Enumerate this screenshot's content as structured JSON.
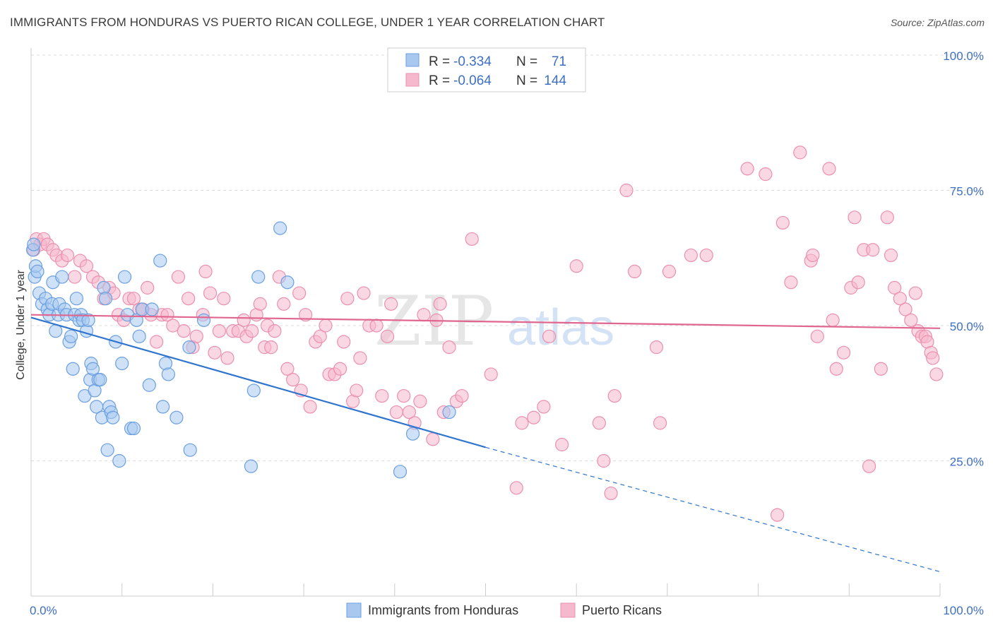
{
  "title": "IMMIGRANTS FROM HONDURAS VS PUERTO RICAN COLLEGE, UNDER 1 YEAR CORRELATION CHART",
  "source": "Source: ZipAtlas.com",
  "watermark": {
    "zip": "ZIP",
    "atlas": "atlas"
  },
  "colors": {
    "blue_fill": "#a8c8f0",
    "blue_stroke": "#6a9fe0",
    "blue_line": "#2f75d0",
    "pink_fill": "#f6b8cc",
    "pink_stroke": "#ec8fae",
    "pink_line": "#e0668f",
    "grid": "#dddddd",
    "axis_label": "#3d6fc4"
  },
  "legend": {
    "rows": [
      {
        "r_label": "R =",
        "r_value": "-0.334",
        "n_label": "N =",
        "n_value": "71"
      },
      {
        "r_label": "R =",
        "r_value": "-0.064",
        "n_label": "N =",
        "n_value": "144"
      }
    ]
  },
  "bottom_legend": [
    "Immigrants from Honduras",
    "Puerto Ricans"
  ],
  "chart_data": {
    "type": "scatter",
    "title": "IMMIGRANTS FROM HONDURAS VS PUERTO RICAN COLLEGE, UNDER 1 YEAR CORRELATION CHART",
    "xlabel": "",
    "ylabel": "College, Under 1 year",
    "xlim": [
      0,
      100
    ],
    "ylim": [
      0,
      100
    ],
    "x_tick_labels": [
      "0.0%",
      "100.0%"
    ],
    "y_tick_values": [
      25,
      50,
      75,
      100
    ],
    "y_tick_labels": [
      "25.0%",
      "50.0%",
      "75.0%",
      "100.0%"
    ],
    "grid": true,
    "legend_position": "top-center",
    "series": [
      {
        "name": "Immigrants from Honduras",
        "r": -0.334,
        "n": 71,
        "trend": {
          "x0": 0,
          "y0": 51.5,
          "x1": 50,
          "y1": 27.5,
          "dashed_to_x": 100,
          "dashed_to_y": 4.5
        },
        "points": [
          [
            0.2,
            64
          ],
          [
            0.3,
            65
          ],
          [
            0.4,
            59
          ],
          [
            0.5,
            61
          ],
          [
            0.7,
            60
          ],
          [
            0.9,
            56
          ],
          [
            1.2,
            54
          ],
          [
            1.6,
            55
          ],
          [
            1.8,
            53
          ],
          [
            2.0,
            52
          ],
          [
            2.3,
            54
          ],
          [
            2.4,
            58
          ],
          [
            2.7,
            49
          ],
          [
            3.0,
            52
          ],
          [
            3.1,
            54
          ],
          [
            3.4,
            59
          ],
          [
            3.7,
            53
          ],
          [
            3.9,
            52
          ],
          [
            4.2,
            47
          ],
          [
            4.4,
            48
          ],
          [
            4.6,
            42
          ],
          [
            4.8,
            52
          ],
          [
            5.0,
            55
          ],
          [
            5.3,
            51
          ],
          [
            5.5,
            52
          ],
          [
            5.7,
            51
          ],
          [
            5.9,
            37
          ],
          [
            6.1,
            49
          ],
          [
            6.3,
            51
          ],
          [
            6.5,
            40
          ],
          [
            6.6,
            43
          ],
          [
            6.8,
            42
          ],
          [
            7.0,
            38
          ],
          [
            7.2,
            35
          ],
          [
            7.4,
            40
          ],
          [
            7.6,
            40
          ],
          [
            7.8,
            33
          ],
          [
            8.0,
            57
          ],
          [
            8.2,
            55
          ],
          [
            8.4,
            27
          ],
          [
            8.6,
            35
          ],
          [
            8.8,
            34
          ],
          [
            9.0,
            33
          ],
          [
            9.3,
            47
          ],
          [
            9.7,
            25
          ],
          [
            10.0,
            43
          ],
          [
            10.3,
            59
          ],
          [
            10.6,
            52
          ],
          [
            11.0,
            31
          ],
          [
            11.3,
            31
          ],
          [
            11.6,
            51
          ],
          [
            11.9,
            48
          ],
          [
            12.2,
            53
          ],
          [
            13.0,
            39
          ],
          [
            13.3,
            53
          ],
          [
            14.2,
            62
          ],
          [
            14.5,
            35
          ],
          [
            14.8,
            43
          ],
          [
            15.1,
            41
          ],
          [
            16.0,
            33
          ],
          [
            17.4,
            46
          ],
          [
            17.5,
            27
          ],
          [
            19.0,
            51
          ],
          [
            24.2,
            24
          ],
          [
            24.5,
            38
          ],
          [
            25.0,
            59
          ],
          [
            27.4,
            68
          ],
          [
            28.2,
            58
          ],
          [
            40.6,
            23
          ],
          [
            42.0,
            30
          ],
          [
            46.0,
            34
          ]
        ]
      },
      {
        "name": "Puerto Ricans",
        "r": -0.064,
        "n": 144,
        "trend": {
          "x0": 0,
          "y0": 52,
          "x1": 100,
          "y1": 49.5
        },
        "points": [
          [
            0.3,
            64
          ],
          [
            0.6,
            66
          ],
          [
            1.0,
            65
          ],
          [
            1.4,
            66
          ],
          [
            1.8,
            65
          ],
          [
            2.4,
            64
          ],
          [
            2.8,
            63
          ],
          [
            3.4,
            62
          ],
          [
            4.0,
            63
          ],
          [
            4.8,
            59
          ],
          [
            5.4,
            62
          ],
          [
            6.1,
            61
          ],
          [
            6.8,
            59
          ],
          [
            7.4,
            58
          ],
          [
            8.0,
            55
          ],
          [
            8.6,
            57
          ],
          [
            9.1,
            56
          ],
          [
            9.6,
            52
          ],
          [
            10.2,
            51
          ],
          [
            10.8,
            55
          ],
          [
            11.3,
            55
          ],
          [
            11.9,
            53
          ],
          [
            12.3,
            53
          ],
          [
            12.8,
            57
          ],
          [
            13.2,
            52
          ],
          [
            13.8,
            47
          ],
          [
            14.4,
            52
          ],
          [
            15.0,
            52
          ],
          [
            15.6,
            50
          ],
          [
            16.2,
            59
          ],
          [
            16.8,
            49
          ],
          [
            17.3,
            55
          ],
          [
            17.8,
            46
          ],
          [
            18.2,
            48
          ],
          [
            18.9,
            52
          ],
          [
            19.2,
            60
          ],
          [
            19.7,
            56
          ],
          [
            20.2,
            45
          ],
          [
            20.7,
            49
          ],
          [
            21.2,
            55
          ],
          [
            21.6,
            44
          ],
          [
            22.2,
            49
          ],
          [
            22.8,
            49
          ],
          [
            23.4,
            51
          ],
          [
            23.7,
            48
          ],
          [
            24.3,
            49
          ],
          [
            24.8,
            52
          ],
          [
            25.2,
            54
          ],
          [
            25.7,
            46
          ],
          [
            26.0,
            50
          ],
          [
            26.4,
            46
          ],
          [
            26.8,
            49
          ],
          [
            27.3,
            59
          ],
          [
            27.8,
            54
          ],
          [
            28.2,
            42
          ],
          [
            28.8,
            40
          ],
          [
            29.5,
            56
          ],
          [
            29.7,
            38
          ],
          [
            30.2,
            52
          ],
          [
            30.7,
            35
          ],
          [
            31.3,
            47
          ],
          [
            31.8,
            48
          ],
          [
            32.4,
            50
          ],
          [
            32.8,
            41
          ],
          [
            33.4,
            41
          ],
          [
            34.0,
            42
          ],
          [
            34.4,
            47
          ],
          [
            34.8,
            55
          ],
          [
            35.4,
            36
          ],
          [
            35.8,
            38
          ],
          [
            36.2,
            44
          ],
          [
            36.6,
            56
          ],
          [
            37.2,
            50
          ],
          [
            38.0,
            50
          ],
          [
            38.6,
            37
          ],
          [
            39.2,
            48
          ],
          [
            39.6,
            54
          ],
          [
            40.2,
            34
          ],
          [
            41.0,
            37
          ],
          [
            41.6,
            34
          ],
          [
            42.2,
            32
          ],
          [
            42.8,
            36
          ],
          [
            43.2,
            52
          ],
          [
            44.2,
            29
          ],
          [
            44.6,
            51
          ],
          [
            45.0,
            54
          ],
          [
            45.4,
            34
          ],
          [
            46.0,
            46
          ],
          [
            46.8,
            36
          ],
          [
            47.4,
            37
          ],
          [
            48.5,
            66
          ],
          [
            50.6,
            41
          ],
          [
            53.4,
            20
          ],
          [
            54.0,
            32
          ],
          [
            55.3,
            33
          ],
          [
            56.4,
            35
          ],
          [
            57.0,
            48
          ],
          [
            58.4,
            28
          ],
          [
            60.0,
            61
          ],
          [
            62.5,
            32
          ],
          [
            63.0,
            25
          ],
          [
            63.8,
            19
          ],
          [
            64.2,
            37
          ],
          [
            65.5,
            75
          ],
          [
            66.4,
            60
          ],
          [
            68.8,
            46
          ],
          [
            69.2,
            32
          ],
          [
            70.2,
            60
          ],
          [
            72.6,
            63
          ],
          [
            74.3,
            63
          ],
          [
            78.8,
            79
          ],
          [
            80.8,
            78
          ],
          [
            82.1,
            15
          ],
          [
            82.7,
            69
          ],
          [
            83.6,
            58
          ],
          [
            84.6,
            82
          ],
          [
            85.8,
            62
          ],
          [
            86.0,
            63
          ],
          [
            86.5,
            48
          ],
          [
            87.8,
            79
          ],
          [
            88.2,
            51
          ],
          [
            88.6,
            42
          ],
          [
            89.4,
            45
          ],
          [
            90.2,
            57
          ],
          [
            90.6,
            70
          ],
          [
            91.0,
            58
          ],
          [
            91.6,
            64
          ],
          [
            92.2,
            24
          ],
          [
            92.6,
            64
          ],
          [
            93.5,
            42
          ],
          [
            94.2,
            70
          ],
          [
            94.6,
            63
          ],
          [
            95.0,
            57
          ],
          [
            95.6,
            55
          ],
          [
            96.2,
            53
          ],
          [
            96.8,
            51
          ],
          [
            97.3,
            56
          ],
          [
            97.6,
            49
          ],
          [
            98.0,
            48
          ],
          [
            98.4,
            48
          ],
          [
            98.6,
            47
          ],
          [
            99.0,
            45
          ],
          [
            99.2,
            44
          ],
          [
            99.6,
            41
          ]
        ]
      }
    ]
  }
}
